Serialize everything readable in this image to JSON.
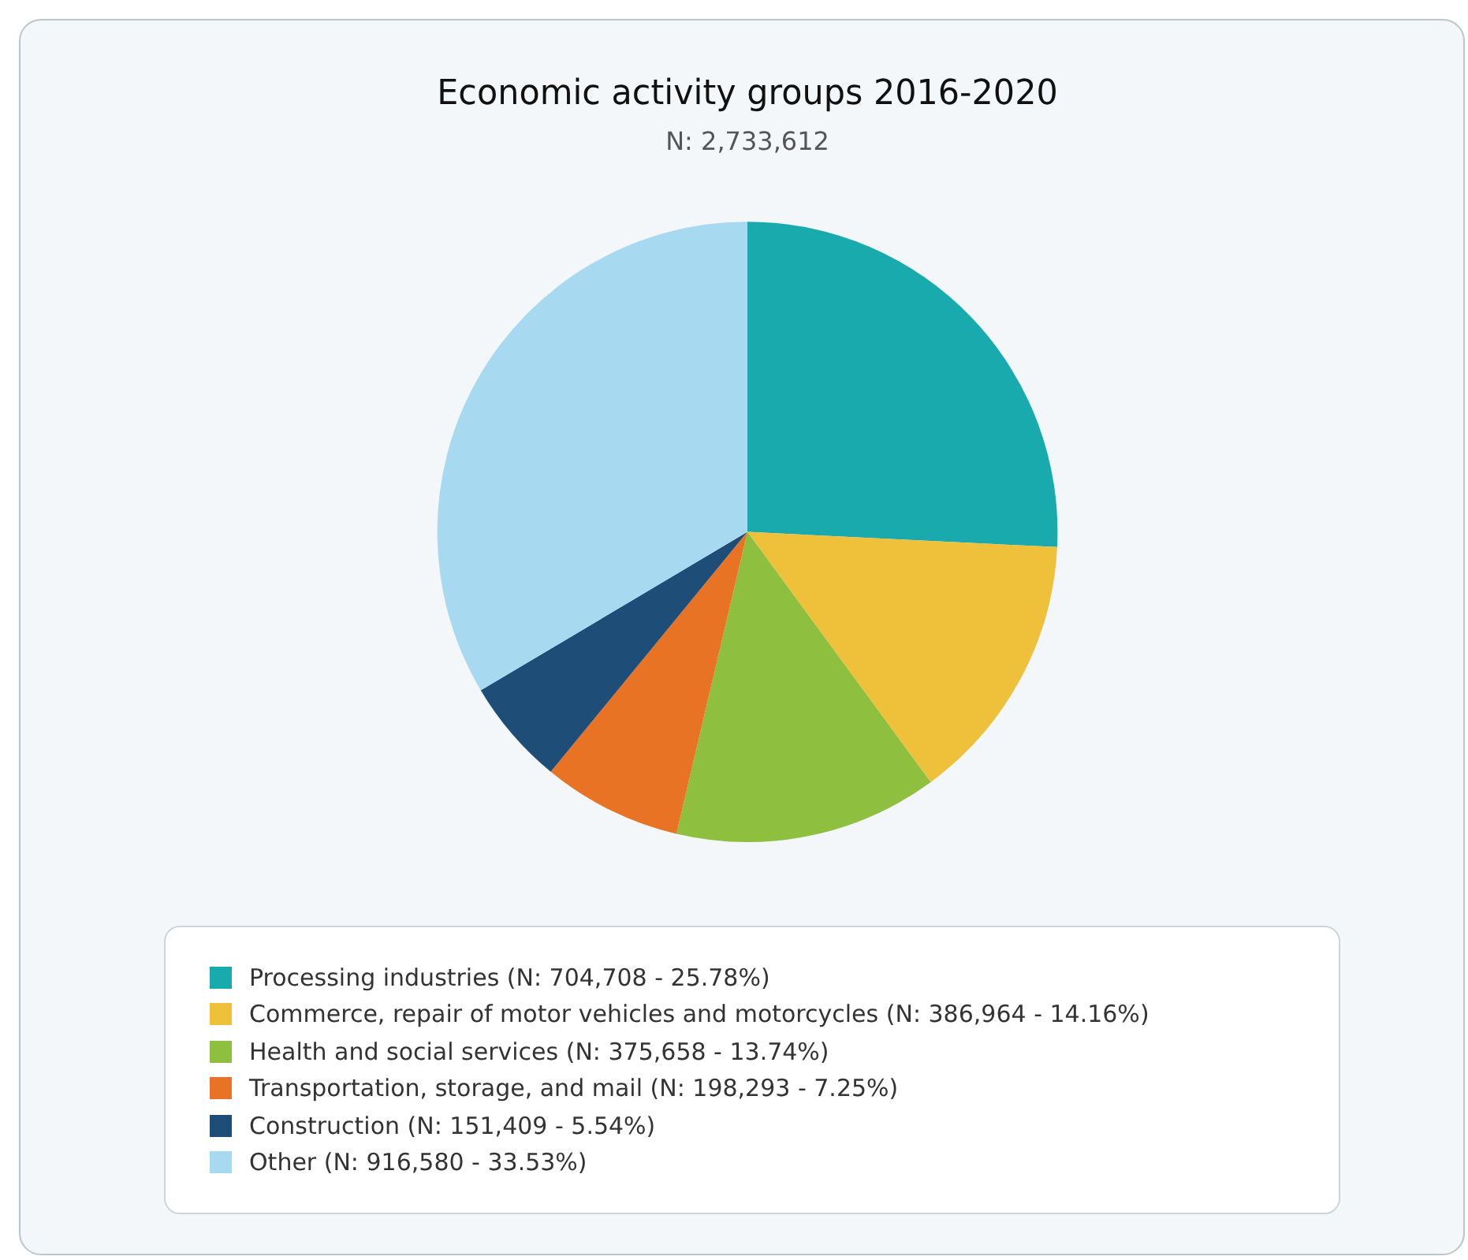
{
  "chart_data": {
    "type": "pie",
    "title": "Economic activity groups 2016-2020",
    "subtitle": "N: 2,733,612",
    "categories": [
      "Processing industries (N: 704,708 - 25.78%)",
      "Commerce, repair of motor vehicles and motorcycles (N: 386,964 - 14.16%)",
      "Health and social services (N: 375,658 - 13.74%)",
      "Transportation, storage, and mail (N: 198,293 - 7.25%)",
      "Construction (N: 151,409 - 5.54%)",
      "Other (N: 916,580 - 33.53%)"
    ],
    "values": [
      704708,
      386964,
      375658,
      198293,
      151409,
      916580
    ],
    "colors": [
      "#19aaad",
      "#efc03a",
      "#8ebf3f",
      "#e87324",
      "#1e4d78",
      "#a7daf0"
    ],
    "legend": "bottom"
  }
}
